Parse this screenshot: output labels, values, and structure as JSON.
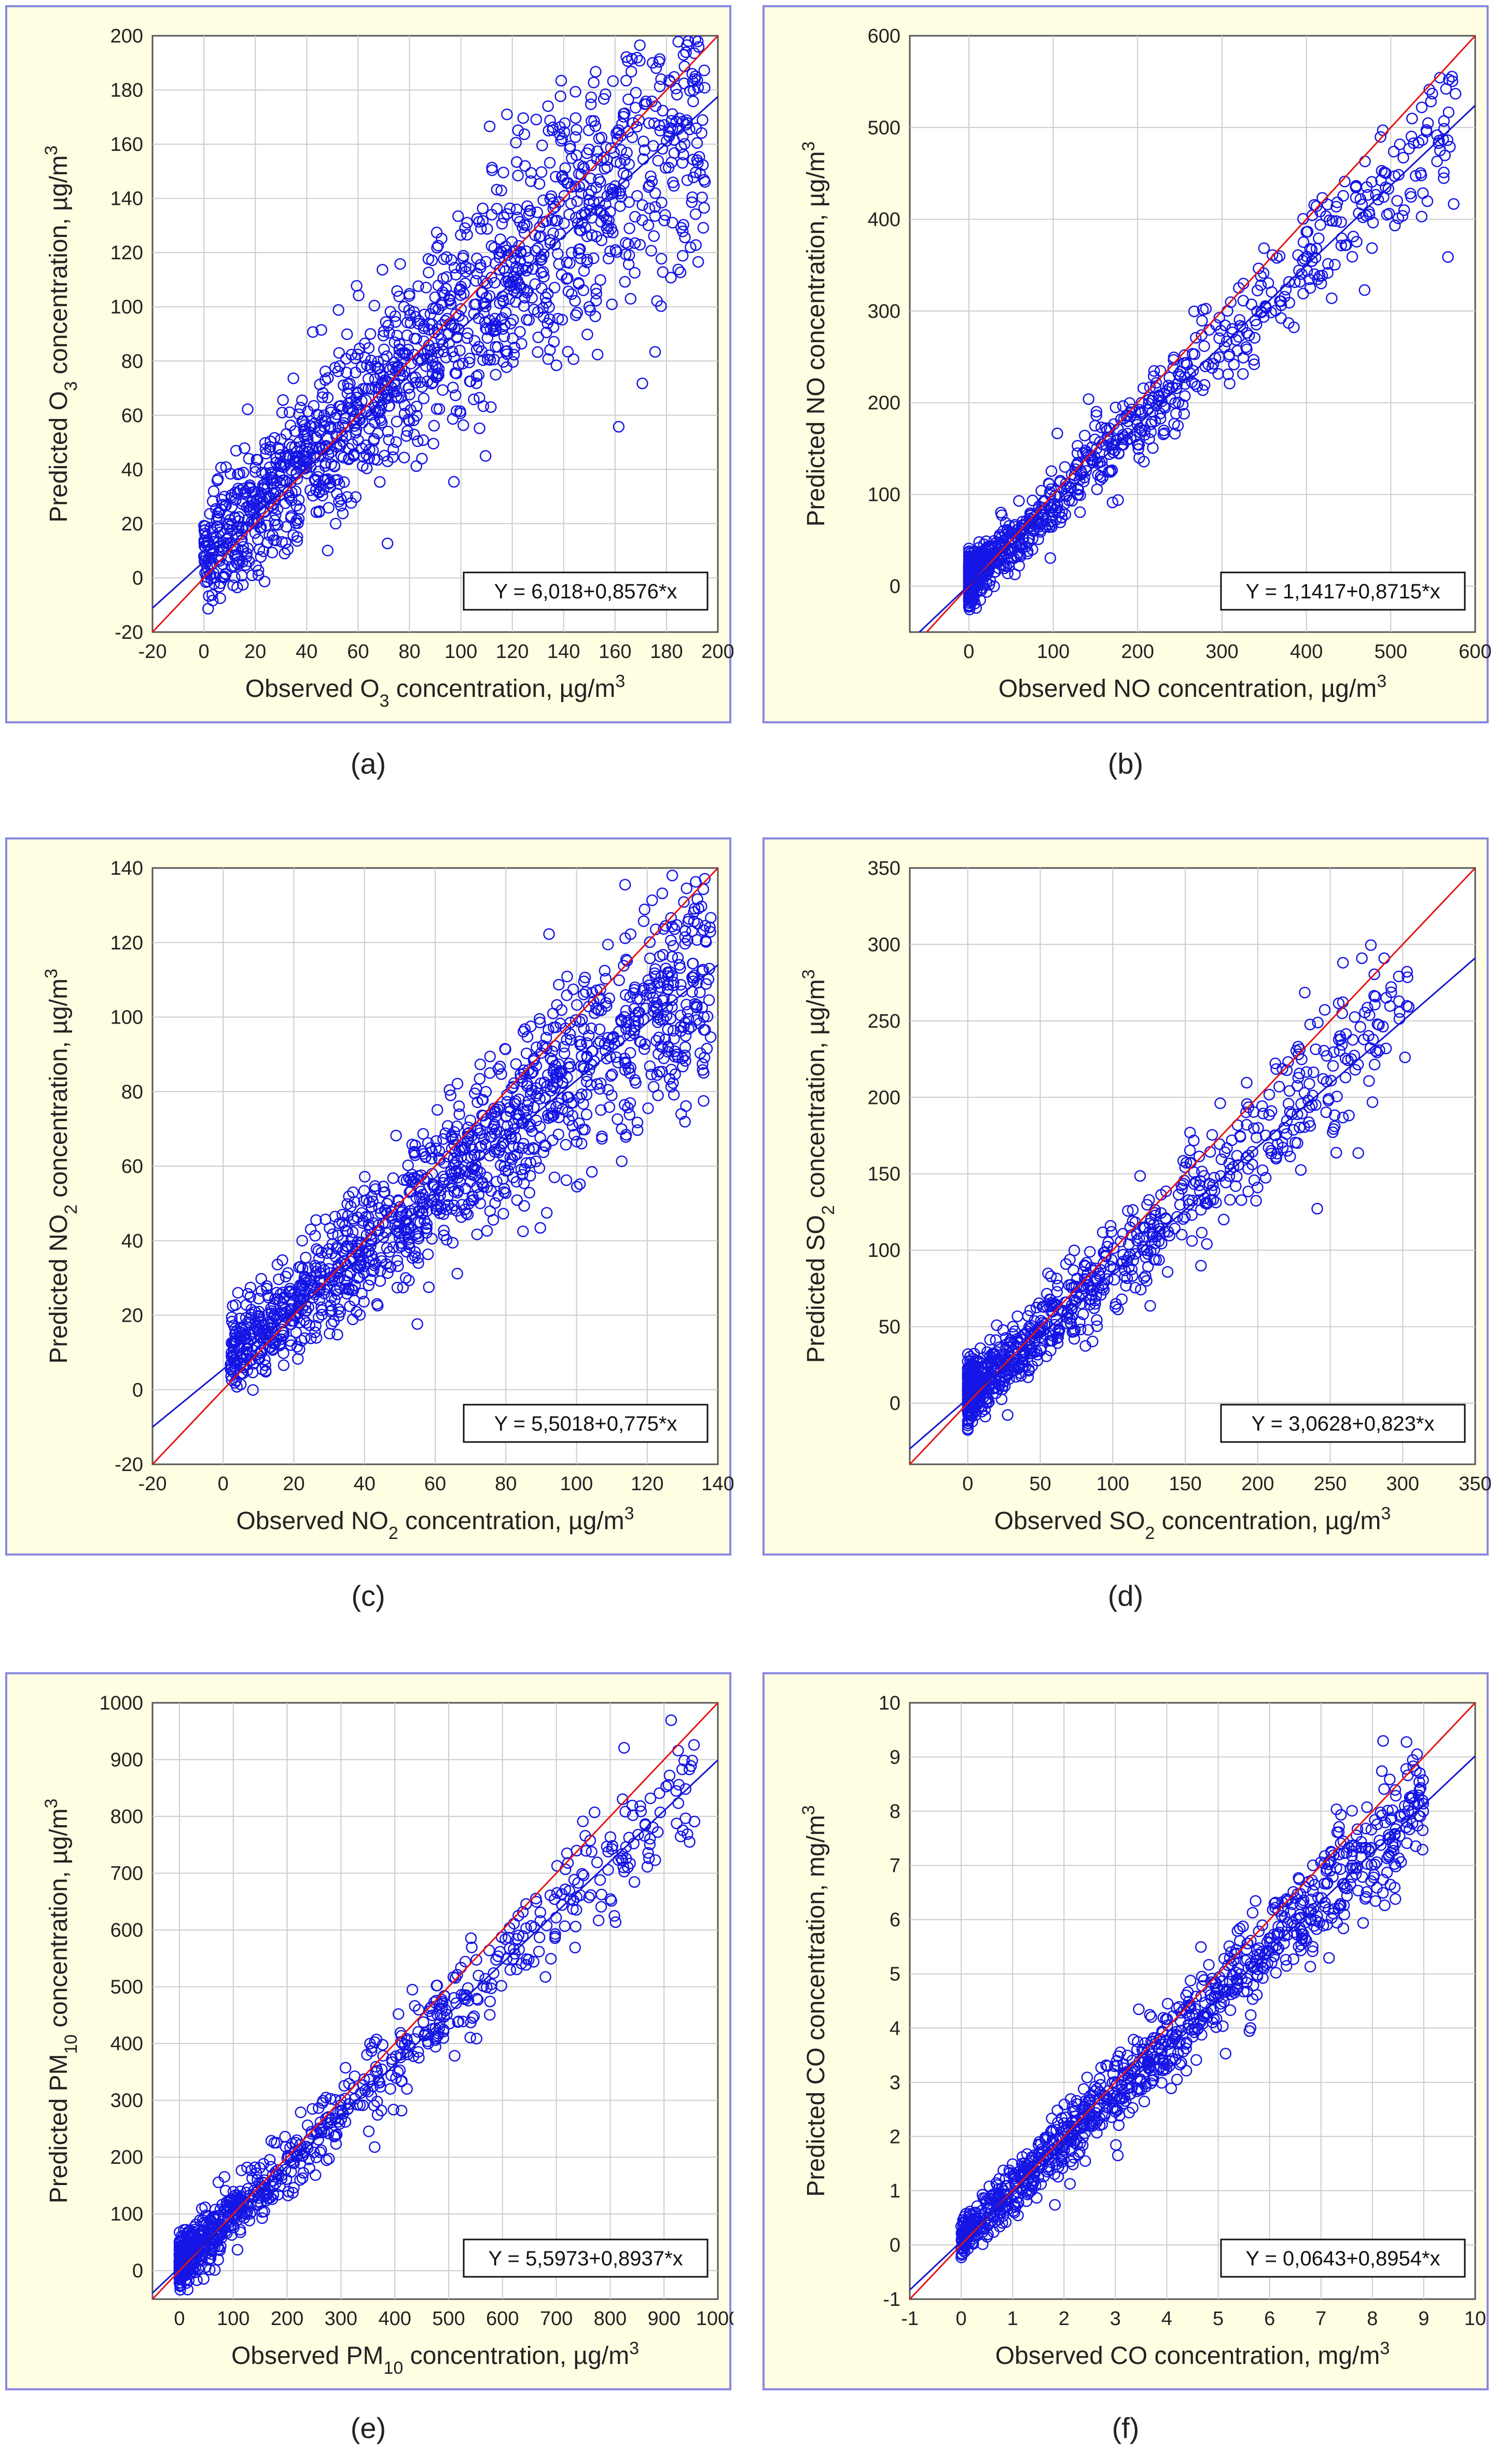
{
  "chart_data": [
    {
      "id": "a",
      "type": "scatter",
      "caption": "(a)",
      "xlim": [
        -20,
        200
      ],
      "ylim": [
        -20,
        200
      ],
      "xticks": [
        -20,
        0,
        20,
        40,
        60,
        80,
        100,
        120,
        140,
        160,
        180,
        200
      ],
      "yticks": [
        -20,
        0,
        20,
        40,
        60,
        80,
        100,
        120,
        140,
        160,
        180,
        200
      ],
      "xlabel_pre": "Observed O",
      "xlabel_sub": "3",
      "xlabel_post": " concentration, µg/m",
      "xlabel_sup": "3",
      "ylabel_pre": "Predicted O",
      "ylabel_sub": "3",
      "ylabel_post": " concentration, µg/m",
      "ylabel_sup": "3",
      "equation": "Y = 6,018+0,8576*x",
      "fit": {
        "intercept": 6.018,
        "slope": 0.8576
      },
      "cloud": {
        "xmin": 0,
        "xmax": 195,
        "spread": 22,
        "count": 1400,
        "density": "heavy"
      }
    },
    {
      "id": "b",
      "type": "scatter",
      "caption": "(b)",
      "xlim": [
        -70,
        600
      ],
      "ylim": [
        -50,
        600
      ],
      "xticks": [
        0,
        100,
        200,
        300,
        400,
        500,
        600
      ],
      "yticks": [
        0,
        100,
        200,
        300,
        400,
        500,
        600
      ],
      "xlabel_pre": "Observed NO concentration, µg/m",
      "xlabel_sub": "",
      "xlabel_post": "",
      "xlabel_sup": "3",
      "ylabel_pre": "Predicted NO concentration, µg/m",
      "ylabel_sub": "",
      "ylabel_post": "",
      "ylabel_sup": "3",
      "equation": "Y = 1,1417+0,8715*x",
      "fit": {
        "intercept": 1.1417,
        "slope": 0.8715
      },
      "cloud": {
        "xmin": 0,
        "xmax": 580,
        "spread": 30,
        "count": 900,
        "density": "skewed"
      }
    },
    {
      "id": "c",
      "type": "scatter",
      "caption": "(c)",
      "xlim": [
        -20,
        140
      ],
      "ylim": [
        -20,
        140
      ],
      "xticks": [
        -20,
        0,
        20,
        40,
        60,
        80,
        100,
        120,
        140
      ],
      "yticks": [
        -20,
        0,
        20,
        40,
        60,
        80,
        100,
        120,
        140
      ],
      "xlabel_pre": "Observed NO",
      "xlabel_sub": "2",
      "xlabel_post": " concentration, µg/m",
      "xlabel_sup": "3",
      "ylabel_pre": "Predicted NO",
      "ylabel_sub": "2",
      "ylabel_post": " concentration, µg/m",
      "ylabel_sup": "3",
      "equation": "Y = 5,5018+0,775*x",
      "fit": {
        "intercept": 5.5018,
        "slope": 0.775
      },
      "cloud": {
        "xmin": 2,
        "xmax": 138,
        "spread": 12,
        "count": 1300,
        "density": "heavy"
      }
    },
    {
      "id": "d",
      "type": "scatter",
      "caption": "(d)",
      "xlim": [
        -40,
        350
      ],
      "ylim": [
        -40,
        350
      ],
      "xticks": [
        0,
        50,
        100,
        150,
        200,
        250,
        300,
        350
      ],
      "yticks": [
        0,
        50,
        100,
        150,
        200,
        250,
        300,
        350
      ],
      "xlabel_pre": "Observed SO",
      "xlabel_sub": "2",
      "xlabel_post": " concentration, µg/m",
      "xlabel_sup": "3",
      "ylabel_pre": "Predicted SO",
      "ylabel_sub": "2",
      "ylabel_post": " concentration, µg/m",
      "ylabel_sup": "3",
      "equation": "Y = 3,0628+0,823*x",
      "fit": {
        "intercept": 3.0628,
        "slope": 0.823
      },
      "cloud": {
        "xmin": 0,
        "xmax": 305,
        "spread": 22,
        "count": 900,
        "density": "skewed"
      }
    },
    {
      "id": "e",
      "type": "scatter",
      "caption": "(e)",
      "xlim": [
        -50,
        1000
      ],
      "ylim": [
        -50,
        1000
      ],
      "xticks": [
        0,
        100,
        200,
        300,
        400,
        500,
        600,
        700,
        800,
        900,
        1000
      ],
      "yticks": [
        0,
        100,
        200,
        300,
        400,
        500,
        600,
        700,
        800,
        900,
        1000
      ],
      "xlabel_pre": "Observed PM",
      "xlabel_sub": "10",
      "xlabel_post": " concentration, µg/m",
      "xlabel_sup": "3",
      "ylabel_pre": "Predicted PM",
      "ylabel_sub": "10",
      "ylabel_post": " concentration, µg/m",
      "ylabel_sup": "3",
      "equation": "Y = 5,5973+0,8937*x",
      "fit": {
        "intercept": 5.5973,
        "slope": 0.8937
      },
      "cloud": {
        "xmin": 0,
        "xmax": 960,
        "spread": 45,
        "count": 900,
        "density": "skewed"
      }
    },
    {
      "id": "f",
      "type": "scatter",
      "caption": "(f)",
      "xlim": [
        -1,
        10
      ],
      "ylim": [
        -1,
        10
      ],
      "xticks": [
        -1,
        0,
        1,
        2,
        3,
        4,
        5,
        6,
        7,
        8,
        9,
        10
      ],
      "yticks": [
        -1,
        0,
        1,
        2,
        3,
        4,
        5,
        6,
        7,
        8,
        9,
        10
      ],
      "xlabel_pre": "Observed CO concentration, mg/m",
      "xlabel_sub": "",
      "xlabel_post": "",
      "xlabel_sup": "3",
      "ylabel_pre": "Predicted CO concentration, mg/m",
      "ylabel_sub": "",
      "ylabel_post": "",
      "ylabel_sup": "3",
      "equation": "Y = 0,0643+0,8954*x",
      "fit": {
        "intercept": 0.0643,
        "slope": 0.8954
      },
      "cloud": {
        "xmin": 0,
        "xmax": 9,
        "spread": 0.45,
        "count": 1000,
        "density": "moderate"
      }
    }
  ]
}
